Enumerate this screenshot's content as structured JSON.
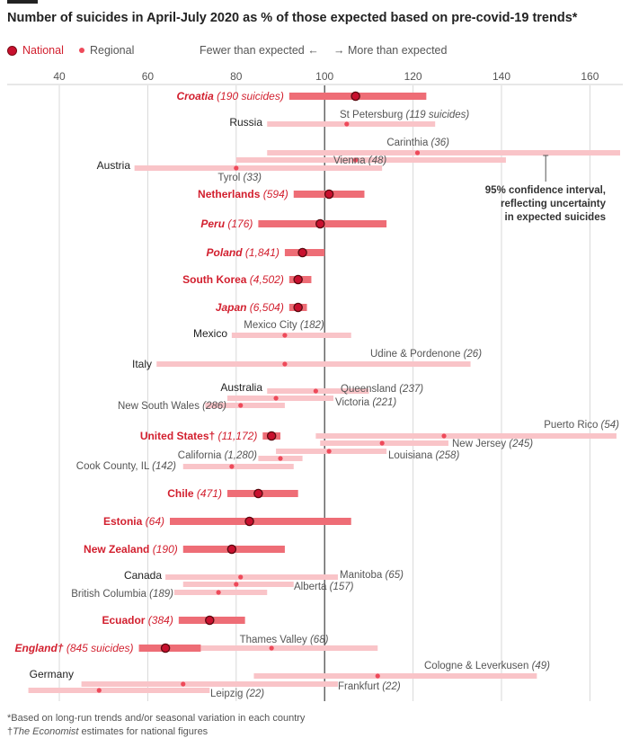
{
  "title": "Number of suicides in April-July 2020 as % of those expected based on pre-covid-19 trends*",
  "legend": {
    "national": "National",
    "regional": "Regional",
    "fewer": "Fewer than expected ←",
    "more": "→ More than expected"
  },
  "annotation": [
    "95% confidence interval,",
    "reflecting uncertainty",
    "in expected suicides"
  ],
  "footnotes": {
    "line1": "*Based on long-run trends and/or seasonal variation in each country",
    "line2_prefix": "†",
    "line2_italic": "The Economist",
    "line2_suffix": " estimates for national figures"
  },
  "colors": {
    "national_bar": "#ee6d76",
    "national_dot": "#c8102e",
    "regional_bar": "#f9c4c8",
    "regional_dot": "#ee4a5a",
    "red_text": "#d21f2e",
    "grid": "#d9d9d9",
    "axis100": "#444444"
  },
  "chart_data": {
    "type": "dot-interval",
    "xlim": [
      32,
      168
    ],
    "xticks": [
      "40",
      "60",
      "80",
      "100",
      "120",
      "140",
      "160"
    ],
    "xtick_values": [
      40,
      60,
      80,
      100,
      120,
      140,
      160
    ],
    "reference_line": 100,
    "rows": [
      {
        "kind": "national",
        "name": "Croatia",
        "count": "(190 suicides)",
        "italic": true,
        "value": 107,
        "low": 92,
        "high": 123,
        "label_side": "left"
      },
      {
        "kind": "country",
        "name": "Russia"
      },
      {
        "kind": "regional",
        "name": "St Petersburg",
        "count": "(119 suicides)",
        "value": 105,
        "low": 87,
        "high": 125,
        "label_pos": "above-right"
      },
      {
        "kind": "regional",
        "name": "Carinthia",
        "count": "(36)",
        "value": 121,
        "low": 87,
        "high": 167,
        "label_pos": "above-left-end"
      },
      {
        "kind": "country",
        "name": "Austria"
      },
      {
        "kind": "regional",
        "name": "Vienna",
        "count": "(48)",
        "value": 107,
        "low": 80,
        "high": 141,
        "label_pos": "inline-right"
      },
      {
        "kind": "regional",
        "name": "Tyrol",
        "count": "(33)",
        "value": 80,
        "low": 57,
        "high": 113,
        "label_pos": "below-left"
      },
      {
        "kind": "national",
        "name": "Netherlands",
        "count": "(594)",
        "italic": false,
        "value": 101,
        "low": 93,
        "high": 109,
        "label_side": "left"
      },
      {
        "kind": "national",
        "name": "Peru",
        "count": "(176)",
        "italic": true,
        "value": 99,
        "low": 85,
        "high": 114,
        "label_side": "left"
      },
      {
        "kind": "national",
        "name": "Poland",
        "count": "(1,841)",
        "italic": true,
        "value": 95,
        "low": 91,
        "high": 100,
        "label_side": "left"
      },
      {
        "kind": "national",
        "name": "South Korea",
        "count": "(4,502)",
        "italic": false,
        "value": 94,
        "low": 92,
        "high": 97,
        "label_side": "left"
      },
      {
        "kind": "national",
        "name": "Japan",
        "count": "(6,504)",
        "italic": true,
        "value": 94,
        "low": 92,
        "high": 96,
        "label_side": "left"
      },
      {
        "kind": "regional",
        "name": "Mexico City",
        "count": "(182)",
        "value": 91,
        "low": 79,
        "high": 106,
        "label_pos": "above-center"
      },
      {
        "kind": "country",
        "name": "Mexico"
      },
      {
        "kind": "regional",
        "name": "Udine & Pordenone",
        "count": "(26)",
        "value": 91,
        "low": 62,
        "high": 133,
        "label_pos": "above-right"
      },
      {
        "kind": "country",
        "name": "Italy"
      },
      {
        "kind": "country",
        "name": "Australia"
      },
      {
        "kind": "regional",
        "name": "Queensland",
        "count": "(237)",
        "value": 98,
        "low": 87,
        "high": 110,
        "label_pos": "above-right"
      },
      {
        "kind": "regional",
        "name": "Victoria",
        "count": "(221)",
        "value": 89,
        "low": 78,
        "high": 102,
        "label_pos": "inline-right"
      },
      {
        "kind": "regional",
        "name": "New South Wales",
        "count": "(286)",
        "value": 81,
        "low": 73,
        "high": 91,
        "label_pos": "inline-left"
      },
      {
        "kind": "regional",
        "name": "Puerto Rico",
        "count": "(54)",
        "value": 127,
        "low": 98,
        "high": 166,
        "label_pos": "above-left-end"
      },
      {
        "kind": "national",
        "name": "United States†",
        "count": "(11,172)",
        "italic": false,
        "value": 88,
        "low": 86,
        "high": 90,
        "label_side": "left"
      },
      {
        "kind": "regional",
        "name": "New Jersey",
        "count": "(245)",
        "value": 113,
        "low": 99,
        "high": 128,
        "label_pos": "inline-right"
      },
      {
        "kind": "regional",
        "name": "Louisiana",
        "count": "(258)",
        "value": 101,
        "low": 89,
        "high": 114,
        "label_pos": "inline-right"
      },
      {
        "kind": "regional",
        "name": "California",
        "count": "(1,280)",
        "value": 90,
        "low": 85,
        "high": 95,
        "label_pos": "inline-left"
      },
      {
        "kind": "regional",
        "name": "Cook County, IL",
        "count": "(142)",
        "value": 79,
        "low": 68,
        "high": 93,
        "label_pos": "inline-left"
      },
      {
        "kind": "national",
        "name": "Chile",
        "count": "(471)",
        "italic": false,
        "value": 85,
        "low": 78,
        "high": 94,
        "label_side": "left"
      },
      {
        "kind": "national",
        "name": "Estonia",
        "count": "(64)",
        "italic": false,
        "value": 83,
        "low": 65,
        "high": 106,
        "label_side": "left"
      },
      {
        "kind": "national",
        "name": "New Zealand",
        "count": "(190)",
        "italic": false,
        "value": 79,
        "low": 68,
        "high": 91,
        "label_side": "left"
      },
      {
        "kind": "country",
        "name": "Canada"
      },
      {
        "kind": "regional",
        "name": "Manitoba",
        "count": "(65)",
        "value": 81,
        "low": 64,
        "high": 103,
        "label_pos": "inline-right"
      },
      {
        "kind": "regional",
        "name": "Alberta",
        "count": "(157)",
        "value": 80,
        "low": 68,
        "high": 93,
        "label_pos": "inline-right"
      },
      {
        "kind": "regional",
        "name": "British Columbia",
        "count": "(189)",
        "value": 76,
        "low": 66,
        "high": 87,
        "label_pos": "inline-left"
      },
      {
        "kind": "national",
        "name": "Ecuador",
        "count": "(384)",
        "italic": false,
        "value": 74,
        "low": 67,
        "high": 82,
        "label_side": "left"
      },
      {
        "kind": "regional",
        "name": "Thames Valley",
        "count": "(68)",
        "value": 88,
        "low": 72,
        "high": 112,
        "label_pos": "above-center"
      },
      {
        "kind": "national",
        "name": "England†",
        "count": "(845 suicides)",
        "italic": true,
        "value": 64,
        "low": 58,
        "high": 72,
        "label_side": "left"
      },
      {
        "kind": "regional",
        "name": "Cologne & Leverkusen",
        "count": "(49)",
        "value": 112,
        "low": 84,
        "high": 148,
        "label_pos": "above-right"
      },
      {
        "kind": "country",
        "name": "Germany"
      },
      {
        "kind": "regional",
        "name": "Frankfurt",
        "count": "(22)",
        "value": 68,
        "low": 45,
        "high": 103,
        "label_pos": "inline-right"
      },
      {
        "kind": "regional",
        "name": "Leipzig",
        "count": "(22)",
        "value": 49,
        "low": 33,
        "high": 74,
        "label_pos": "inline-right"
      }
    ]
  }
}
